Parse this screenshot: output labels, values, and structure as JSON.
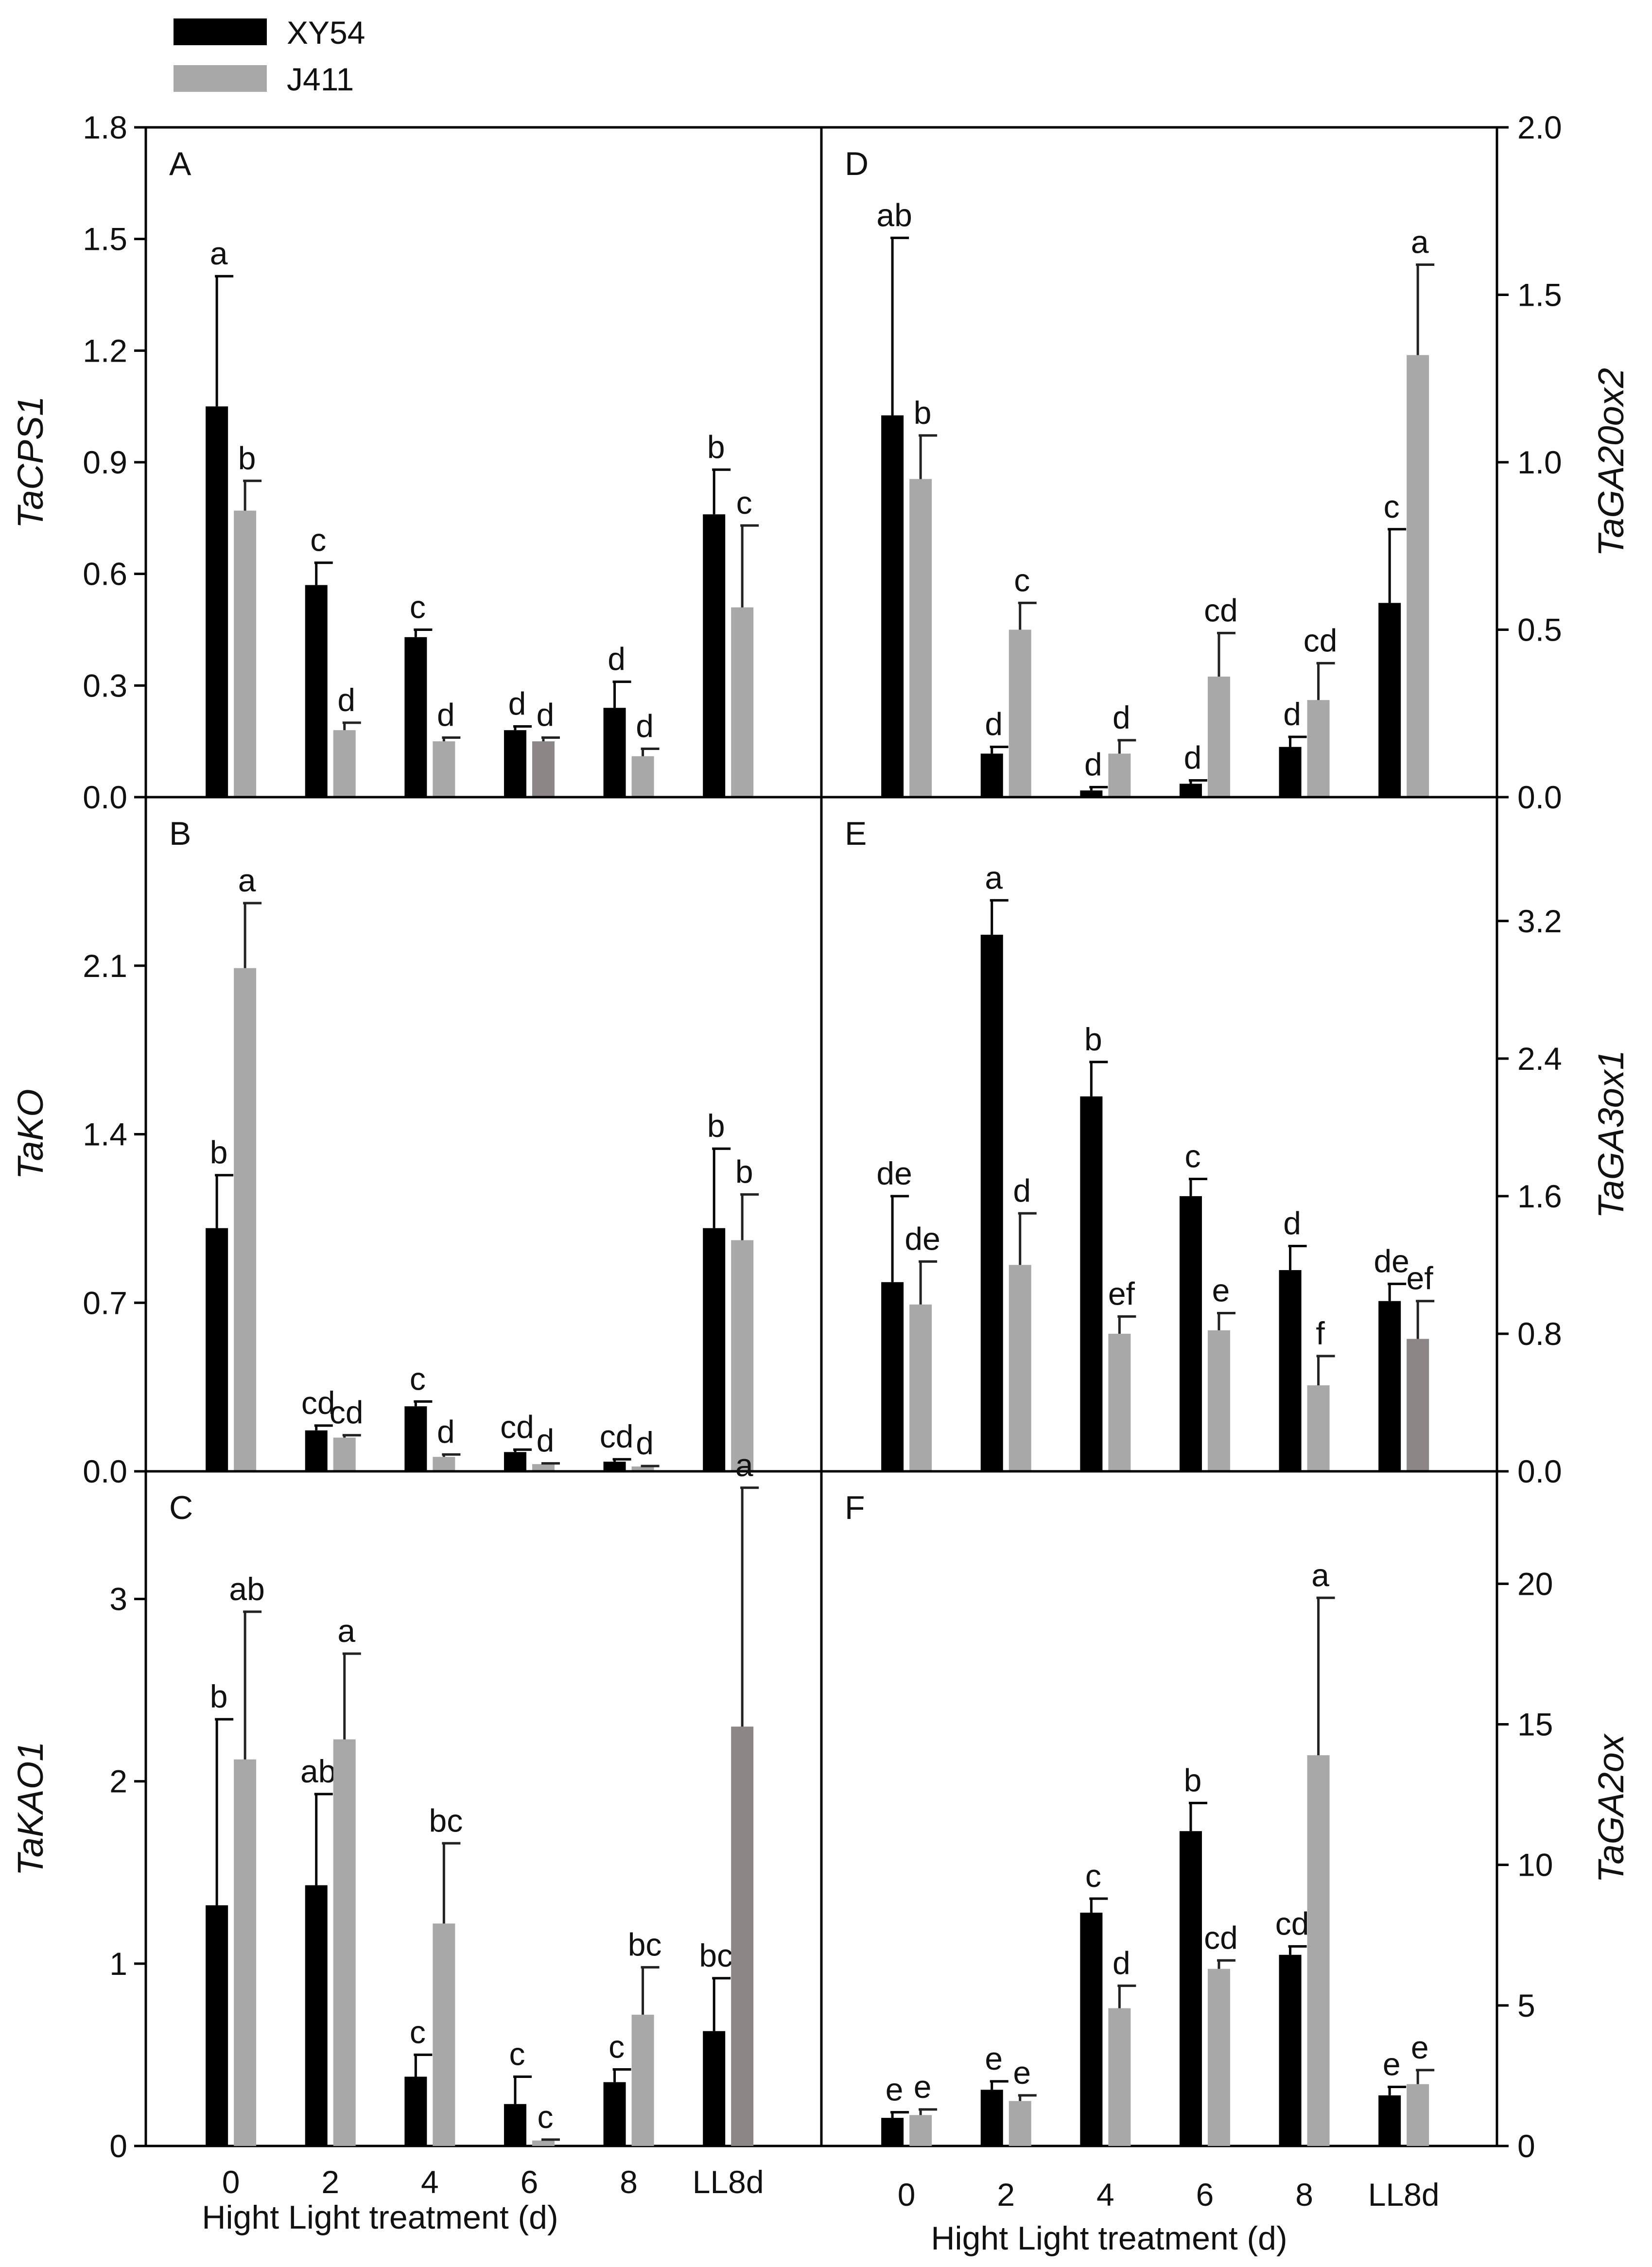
{
  "legend": [
    {
      "name": "XY54",
      "color": "#000000"
    },
    {
      "name": "J411",
      "color": "#a8a8a8"
    }
  ],
  "colors": {
    "xy54": "#000000",
    "j411": "#a8a8a8",
    "j411_alt": "#8c8686"
  },
  "chart_data": [
    {
      "type": "bar",
      "panel": "A",
      "ylabel": "TaCPS1",
      "axis_side": "left",
      "ylim": [
        0,
        1.8
      ],
      "yticks": [
        "0.0",
        "0.3",
        "0.6",
        "0.9",
        "1.2",
        "1.5",
        "1.8"
      ],
      "categories": [
        "0",
        "2",
        "4",
        "6",
        "8",
        "LL8d"
      ],
      "series": [
        {
          "name": "XY54",
          "values": [
            1.05,
            0.57,
            0.43,
            0.18,
            0.24,
            0.76
          ],
          "errors": [
            0.35,
            0.06,
            0.02,
            0.01,
            0.07,
            0.12
          ],
          "letters": [
            "a",
            "c",
            "c",
            "d",
            "d",
            "b"
          ]
        },
        {
          "name": "J411",
          "values": [
            0.77,
            0.18,
            0.15,
            0.15,
            0.11,
            0.51
          ],
          "errors": [
            0.08,
            0.02,
            0.01,
            0.01,
            0.02,
            0.22
          ],
          "letters": [
            "b",
            "d",
            "d",
            "d",
            "d",
            "c"
          ],
          "alt_color_index": [
            3
          ]
        }
      ]
    },
    {
      "type": "bar",
      "panel": "B",
      "ylabel": "TaKO",
      "axis_side": "left",
      "ylim": [
        0,
        2.8
      ],
      "yticks": [
        "0.0",
        "0.7",
        "1.4",
        "2.1"
      ],
      "categories": [
        "0",
        "2",
        "4",
        "6",
        "8",
        "LL8d"
      ],
      "series": [
        {
          "name": "XY54",
          "values": [
            1.01,
            0.17,
            0.27,
            0.08,
            0.04,
            1.01
          ],
          "errors": [
            0.22,
            0.02,
            0.02,
            0.01,
            0.01,
            0.33
          ],
          "letters": [
            "b",
            "cd",
            "c",
            "cd",
            "cd",
            "b"
          ]
        },
        {
          "name": "J411",
          "values": [
            2.09,
            0.14,
            0.06,
            0.03,
            0.02,
            0.96
          ],
          "errors": [
            0.27,
            0.01,
            0.01,
            0.003,
            0.002,
            0.19
          ],
          "letters": [
            "a",
            "cd",
            "d",
            "d",
            "d",
            "b"
          ]
        }
      ]
    },
    {
      "type": "bar",
      "panel": "C",
      "ylabel": "TaKAO1",
      "axis_side": "left",
      "ylim": [
        0,
        3.7
      ],
      "yticks": [
        "0",
        "1",
        "2",
        "3"
      ],
      "categories": [
        "0",
        "2",
        "4",
        "6",
        "8",
        "LL8d"
      ],
      "series": [
        {
          "name": "XY54",
          "values": [
            1.32,
            1.43,
            0.38,
            0.23,
            0.35,
            0.63
          ],
          "errors": [
            1.02,
            0.5,
            0.12,
            0.15,
            0.07,
            0.29
          ],
          "letters": [
            "b",
            "ab",
            "c",
            "c",
            "c",
            "bc"
          ]
        },
        {
          "name": "J411",
          "values": [
            2.12,
            2.23,
            1.22,
            0.03,
            0.72,
            2.3
          ],
          "errors": [
            0.81,
            0.47,
            0.44,
            0.005,
            0.26,
            1.31
          ],
          "letters": [
            "ab",
            "a",
            "bc",
            "c",
            "bc",
            "a"
          ],
          "alt_color_index": [
            5
          ]
        }
      ]
    },
    {
      "type": "bar",
      "panel": "D",
      "ylabel": "TaGA20ox2",
      "axis_side": "right",
      "ylim": [
        0,
        2.0
      ],
      "yticks": [
        "0.0",
        "0.5",
        "1.0",
        "1.5",
        "2.0"
      ],
      "categories": [
        "0",
        "2",
        "4",
        "6",
        "8",
        "LL8d"
      ],
      "series": [
        {
          "name": "XY54",
          "values": [
            1.14,
            0.13,
            0.02,
            0.04,
            0.15,
            0.58
          ],
          "errors": [
            0.53,
            0.02,
            0.01,
            0.01,
            0.03,
            0.22
          ],
          "letters": [
            "ab",
            "d",
            "d",
            "d",
            "d",
            "c"
          ]
        },
        {
          "name": "J411",
          "values": [
            0.95,
            0.5,
            0.13,
            0.36,
            0.29,
            1.32
          ],
          "errors": [
            0.13,
            0.08,
            0.04,
            0.13,
            0.11,
            0.27
          ],
          "letters": [
            "b",
            "c",
            "d",
            "cd",
            "cd",
            "a"
          ]
        }
      ]
    },
    {
      "type": "bar",
      "panel": "E",
      "ylabel": "TaGA3ox1",
      "axis_side": "right",
      "ylim": [
        0,
        3.92
      ],
      "yticks": [
        "0.0",
        "0.8",
        "1.6",
        "2.4",
        "3.2"
      ],
      "categories": [
        "0",
        "2",
        "4",
        "6",
        "8",
        "LL8d"
      ],
      "series": [
        {
          "name": "XY54",
          "values": [
            1.1,
            3.12,
            2.18,
            1.6,
            1.17,
            0.99
          ],
          "errors": [
            0.5,
            0.2,
            0.2,
            0.1,
            0.14,
            0.1
          ],
          "letters": [
            "de",
            "a",
            "b",
            "c",
            "d",
            "de"
          ]
        },
        {
          "name": "J411",
          "values": [
            0.97,
            1.2,
            0.8,
            0.82,
            0.5,
            0.77
          ],
          "errors": [
            0.25,
            0.3,
            0.1,
            0.1,
            0.17,
            0.22
          ],
          "letters": [
            "de",
            "d",
            "ef",
            "e",
            "f",
            "ef"
          ],
          "alt_color_index": [
            5
          ]
        }
      ]
    },
    {
      "type": "bar",
      "panel": "F",
      "ylabel": "TaGA2ox",
      "axis_side": "right",
      "ylim": [
        0,
        24
      ],
      "yticks": [
        "0",
        "5",
        "10",
        "15",
        "20"
      ],
      "categories": [
        "0",
        "2",
        "4",
        "6",
        "8",
        "LL8d"
      ],
      "series": [
        {
          "name": "XY54",
          "values": [
            1.0,
            2.0,
            8.3,
            11.2,
            6.8,
            1.8
          ],
          "errors": [
            0.2,
            0.3,
            0.5,
            1.0,
            0.3,
            0.3
          ],
          "letters": [
            "e",
            "e",
            "c",
            "b",
            "cd",
            "e"
          ]
        },
        {
          "name": "J411",
          "values": [
            1.1,
            1.6,
            4.9,
            6.3,
            13.9,
            2.2
          ],
          "errors": [
            0.2,
            0.2,
            0.8,
            0.3,
            5.6,
            0.5
          ],
          "letters": [
            "e",
            "e",
            "d",
            "cd",
            "a",
            "e"
          ]
        }
      ]
    }
  ],
  "xaxis": {
    "left_label": "Hight Light treatment (d)",
    "right_label": "Hight Light treatment (d)"
  }
}
